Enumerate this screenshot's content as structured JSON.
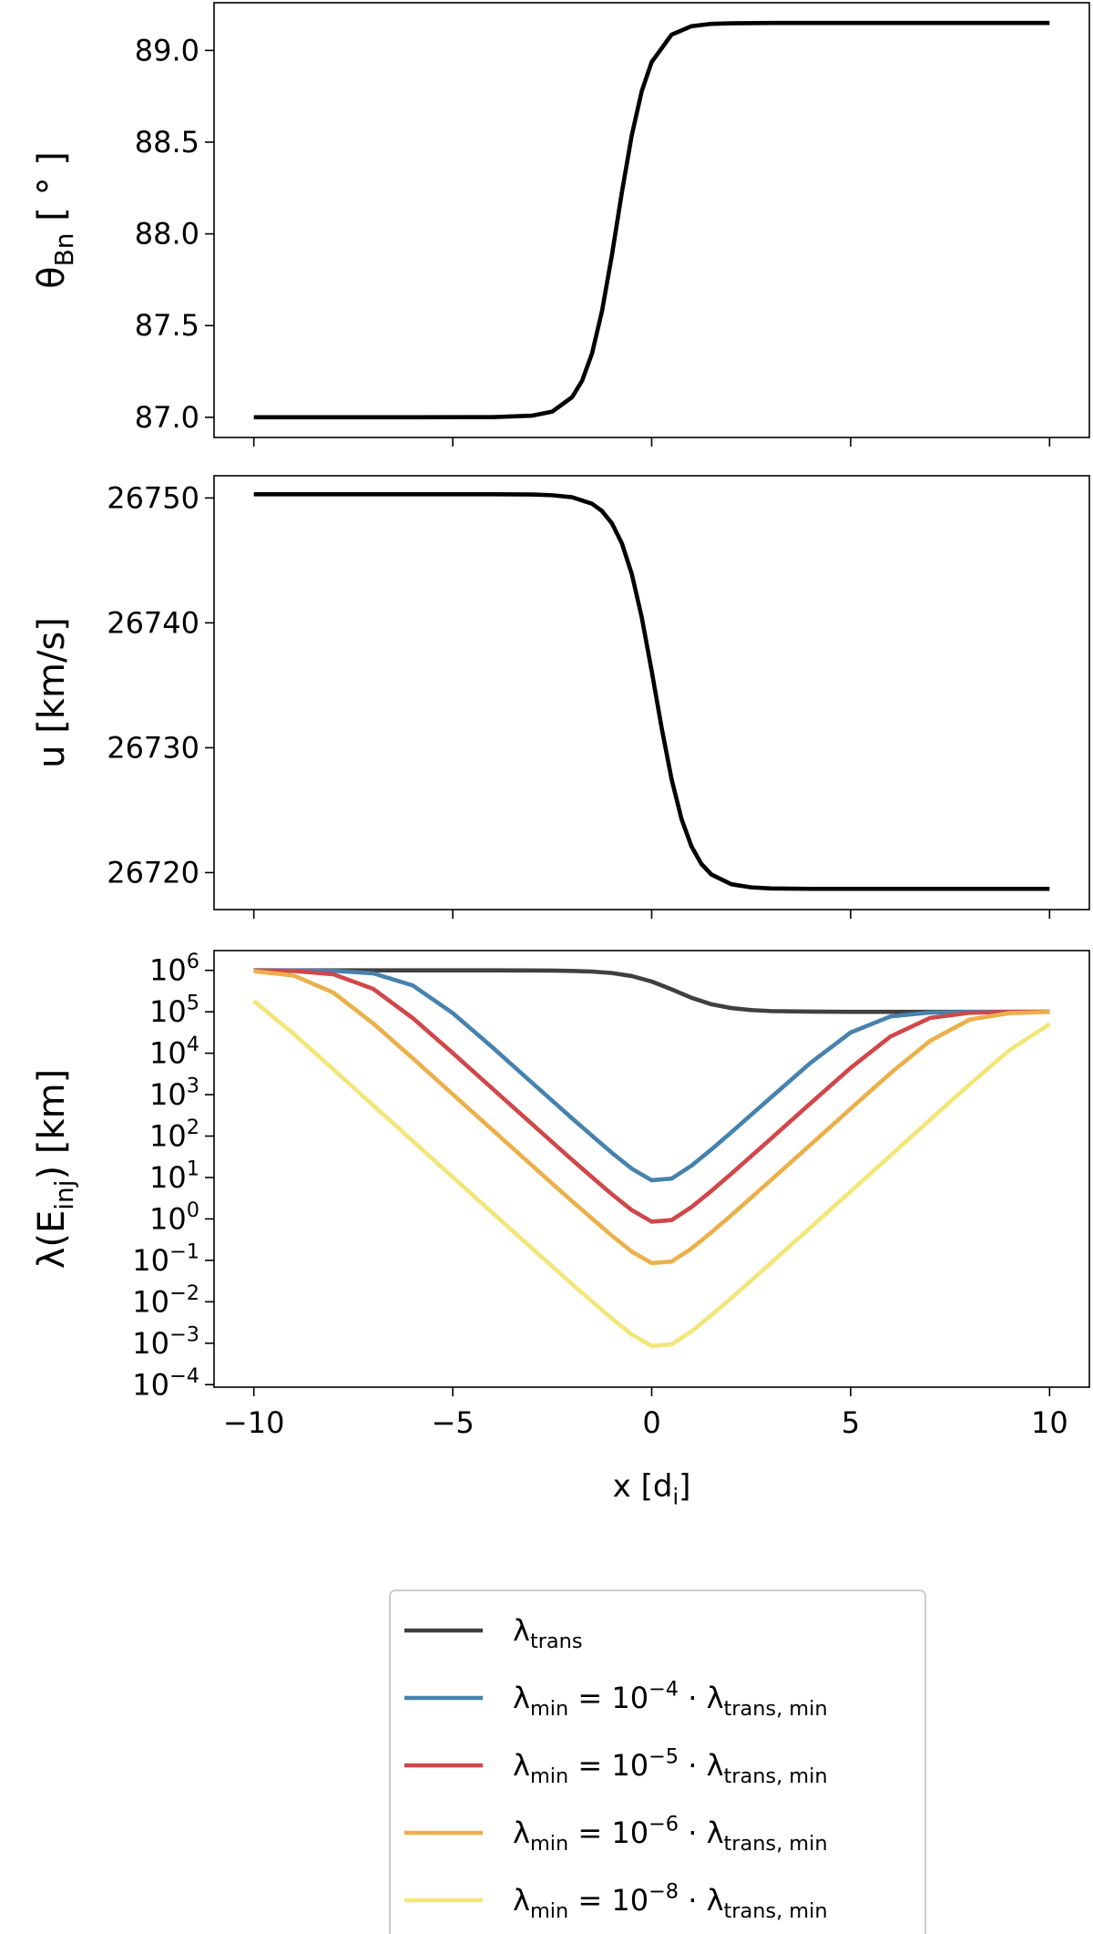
{
  "chart_data": [
    {
      "type": "line",
      "ylabel": "θ_{Bn} [ ° ]",
      "x": [
        -10,
        -8,
        -6,
        -4,
        -3,
        -2.5,
        -2,
        -1.75,
        -1.5,
        -1.25,
        -1,
        -0.75,
        -0.5,
        -0.25,
        0,
        0.5,
        1,
        1.5,
        2,
        3,
        4,
        6,
        8,
        10
      ],
      "values": [
        87.0,
        87.0,
        87.0,
        87.001,
        87.009,
        87.031,
        87.11,
        87.199,
        87.348,
        87.578,
        87.884,
        88.226,
        88.539,
        88.778,
        88.937,
        89.086,
        89.132,
        89.145,
        89.148,
        89.15,
        89.15,
        89.15,
        89.15,
        89.15
      ],
      "color": "#000000",
      "xlim": [
        -11,
        11
      ],
      "ylim": [
        86.89,
        89.26
      ],
      "yticks": [
        {
          "value": 87,
          "label": "87.0"
        },
        87.5,
        {
          "value": 88,
          "label": "88.0"
        },
        88.5,
        {
          "value": 89,
          "label": "89.0"
        }
      ]
    },
    {
      "type": "line",
      "ylabel": "u [km/s]",
      "x": [
        -10,
        -8,
        -6,
        -4,
        -3,
        -2.5,
        -2,
        -1.5,
        -1.25,
        -1,
        -0.75,
        -0.5,
        -0.25,
        0,
        0.25,
        0.5,
        0.75,
        1,
        1.25,
        1.5,
        2,
        2.5,
        3,
        4,
        6,
        8,
        10
      ],
      "values": [
        26750.3,
        26750.3,
        26750.3,
        26750.3,
        26750.28,
        26750.22,
        26750.06,
        26749.54,
        26748.96,
        26747.97,
        26746.37,
        26743.91,
        26740.44,
        26736.14,
        26731.59,
        26727.48,
        26724.29,
        26722.1,
        26720.69,
        26719.85,
        26719.07,
        26718.82,
        26718.73,
        26718.7,
        26718.7,
        26718.7,
        26718.7
      ],
      "color": "#000000",
      "xlim": [
        -11,
        11
      ],
      "ylim": [
        26717.04,
        26751.78
      ],
      "yticks": [
        26720,
        26730,
        26740,
        26750
      ]
    },
    {
      "type": "line",
      "ylabel": "λ(E_{inj}) [km]",
      "xlabel": "x [d_{i}]",
      "yscale": "log",
      "legend": "below",
      "x": [
        -10,
        -9,
        -8,
        -7,
        -6,
        -5,
        -4,
        -3,
        -2.5,
        -2,
        -1.5,
        -1,
        -0.5,
        0,
        0.5,
        1,
        1.5,
        2,
        2.5,
        3,
        4,
        5,
        6,
        7,
        8,
        9,
        10
      ],
      "series": [
        {
          "name": "λ_{trans}",
          "color": "#404040",
          "values": [
            1000000,
            1000000,
            1000000,
            1000000,
            1000000,
            1000000,
            1000000,
            995000,
            986000,
            970000,
            935000,
            861000,
            728000,
            538000,
            348000,
            218000,
            152000,
            123000,
            110000,
            104000,
            101000,
            100000,
            100000,
            100000,
            100000,
            100000,
            100000
          ]
        },
        {
          "name": "λ_{min} = 10^{−4} · λ_{trans, min}",
          "color": "#4682ad",
          "values": [
            1000000,
            997000,
            976000,
            847000,
            430000,
            92900,
            13800,
            1910,
            714,
            267,
            102,
            39.4,
            16.3,
            8.59,
            9.38,
            19.3,
            47.5,
            123,
            326,
            863,
            5930,
            31600,
            77300,
            96200,
            99400,
            99900,
            100000
          ]
        },
        {
          "name": "λ_{min} = 10^{−5} · λ_{trans, min}",
          "color": "#d0474a",
          "values": [
            995000,
            968000,
            804000,
            357000,
            69800,
            10100,
            1390,
            192,
            71.4,
            26.7,
            10.2,
            3.94,
            1.63,
            0.859,
            0.938,
            1.93,
            4.75,
            12.3,
            32.6,
            87.1,
            627,
            4420,
            25300,
            71300,
            94600,
            99300,
            99900
          ]
        },
        {
          "name": "λ_{min} = 10^{−6} · λ_{trans, min}",
          "color": "#ebb04a",
          "values": [
            957000,
            752000,
            290000,
            52400,
            7460,
            1020,
            140,
            19.2,
            7.14,
            2.67,
            1.02,
            0.394,
            0.163,
            0.0859,
            0.0938,
            0.193,
            0.475,
            1.23,
            3.26,
            8.71,
            63.1,
            459,
            3280,
            20000,
            65200,
            93100,
            99000
          ]
        },
        {
          "name": "λ_{min} = 10^{−8} · λ_{trans, min}",
          "color": "#f2e679",
          "values": [
            182000,
            29400,
            4070,
            553,
            75.2,
            10.2,
            1.4,
            0.192,
            0.0714,
            0.0267,
            0.0102,
            0.00394,
            0.00163,
            0.000859,
            0.000938,
            0.00193,
            0.00475,
            0.0123,
            0.0326,
            0.0871,
            0.631,
            4.61,
            33.9,
            249,
            1810,
            12000,
            50400
          ]
        }
      ],
      "xlim": [
        -11,
        11
      ],
      "ylim": [
        8.7e-05,
        3000000
      ],
      "xticks": [
        {
          "value": -10,
          "label": "−10"
        },
        {
          "value": -5,
          "label": "−5"
        },
        0,
        5,
        10
      ],
      "yticks": [
        {
          "value": 0.0001,
          "label": "10^{−4}"
        },
        {
          "value": 0.001,
          "label": "10^{−3}"
        },
        {
          "value": 0.01,
          "label": "10^{−2}"
        },
        {
          "value": 0.1,
          "label": "10^{−1}"
        },
        {
          "value": 1,
          "label": "10^{0}"
        },
        {
          "value": 10,
          "label": "10^{1}"
        },
        {
          "value": 100,
          "label": "10^{2}"
        },
        {
          "value": 1000,
          "label": "10^{3}"
        },
        {
          "value": 10000,
          "label": "10^{4}"
        },
        {
          "value": 100000,
          "label": "10^{5}"
        },
        {
          "value": 1000000,
          "label": "10^{6}"
        }
      ]
    }
  ]
}
